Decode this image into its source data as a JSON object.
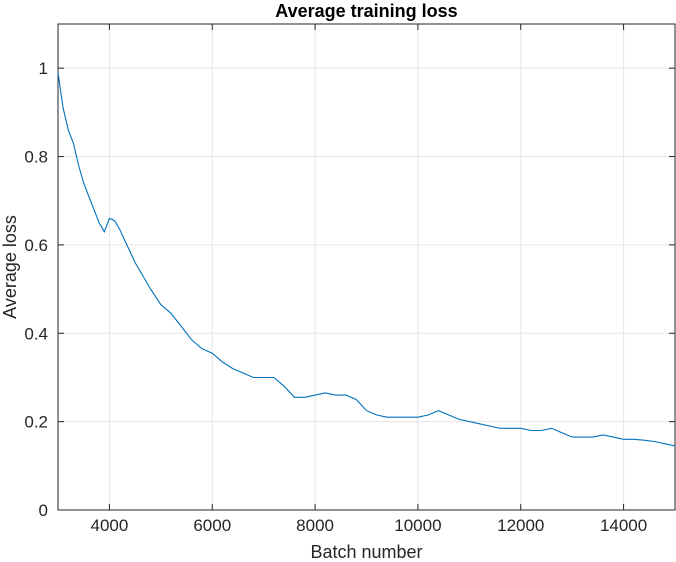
{
  "chart_data": {
    "type": "line",
    "title": "Average training loss",
    "xlabel": "Batch number",
    "ylabel": "Average loss",
    "xlim": [
      3000,
      15000
    ],
    "ylim": [
      0,
      1.1
    ],
    "xticks": [
      4000,
      6000,
      8000,
      10000,
      12000,
      14000
    ],
    "yticks": [
      0,
      0.2,
      0.4,
      0.6,
      0.8,
      1
    ],
    "xtick_labels": [
      "4000",
      "6000",
      "8000",
      "10000",
      "12000",
      "14000"
    ],
    "ytick_labels": [
      "0",
      "0.2",
      "0.4",
      "0.6",
      "0.8",
      "1"
    ],
    "grid": true,
    "colors": {
      "line": "#0072BD",
      "grid": "#e6e6e6",
      "axes": "#262626"
    },
    "series": [
      {
        "x": [
          3000,
          3100,
          3200,
          3300,
          3400,
          3500,
          3600,
          3700,
          3800,
          3900,
          4000,
          4100,
          4200,
          4300,
          4400,
          4500,
          4600,
          4800,
          5000,
          5200,
          5400,
          5600,
          5800,
          6000,
          6200,
          6400,
          6600,
          6800,
          7000,
          7200,
          7400,
          7600,
          7800,
          8000,
          8200,
          8400,
          8600,
          8800,
          9000,
          9200,
          9400,
          9600,
          9800,
          10000,
          10200,
          10400,
          10600,
          10800,
          11000,
          11200,
          11400,
          11600,
          11800,
          12000,
          12200,
          12400,
          12600,
          12800,
          13000,
          13200,
          13400,
          13600,
          13800,
          14000,
          14200,
          14400,
          14600,
          14800,
          15000
        ],
        "values": [
          0.99,
          0.91,
          0.86,
          0.83,
          0.78,
          0.74,
          0.71,
          0.68,
          0.65,
          0.63,
          0.66,
          0.655,
          0.635,
          0.61,
          0.585,
          0.56,
          0.54,
          0.5,
          0.465,
          0.445,
          0.415,
          0.385,
          0.365,
          0.355,
          0.335,
          0.32,
          0.31,
          0.3,
          0.3,
          0.3,
          0.28,
          0.255,
          0.255,
          0.26,
          0.265,
          0.26,
          0.26,
          0.25,
          0.225,
          0.215,
          0.21,
          0.21,
          0.21,
          0.21,
          0.215,
          0.225,
          0.215,
          0.205,
          0.2,
          0.195,
          0.19,
          0.185,
          0.185,
          0.185,
          0.18,
          0.18,
          0.185,
          0.175,
          0.165,
          0.165,
          0.165,
          0.17,
          0.165,
          0.16,
          0.16,
          0.158,
          0.155,
          0.15,
          0.145
        ]
      }
    ]
  }
}
